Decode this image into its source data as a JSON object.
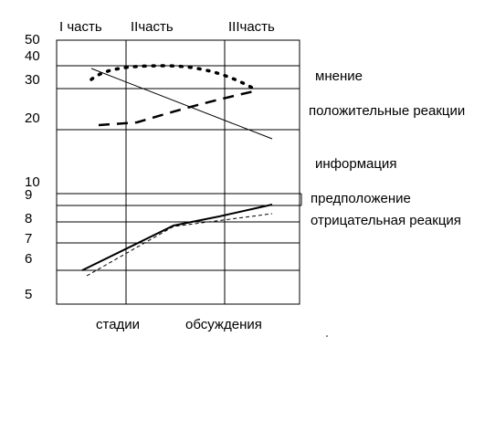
{
  "parts": [
    "I часть",
    "IIчасть",
    "IIIчасть"
  ],
  "y_labels": [
    "50",
    "40",
    "30",
    "20",
    "10",
    "9",
    "8",
    "7",
    "6",
    "5"
  ],
  "series_labels": [
    "мнение",
    "положительные реакции",
    "информация",
    "предположение",
    "отрицательная реакция"
  ],
  "x_labels": [
    "стадии",
    "обсуждения"
  ]
}
